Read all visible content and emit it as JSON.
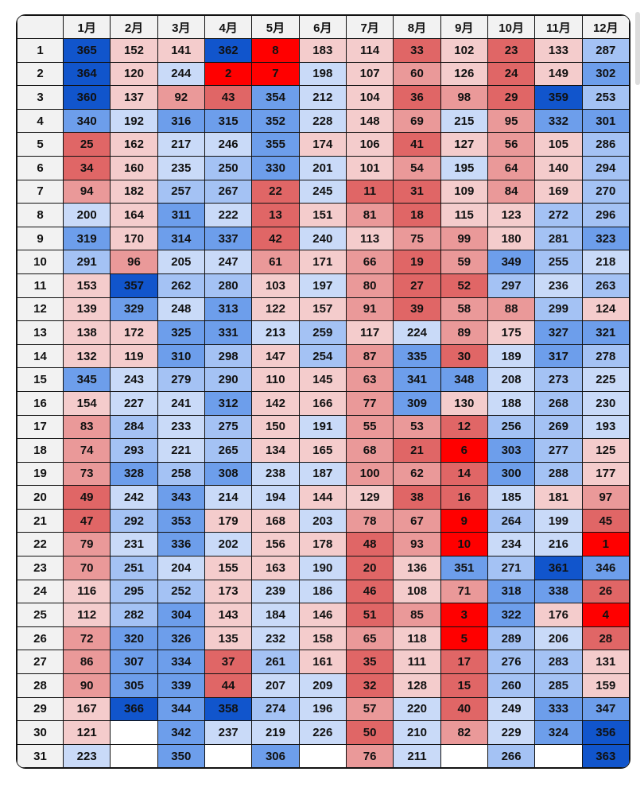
{
  "corner": "",
  "months": [
    "1月",
    "2月",
    "3月",
    "4月",
    "5月",
    "6月",
    "7月",
    "8月",
    "9月",
    "10月",
    "11月",
    "12月"
  ],
  "days": [
    "1",
    "2",
    "3",
    "4",
    "5",
    "6",
    "7",
    "8",
    "9",
    "10",
    "11",
    "12",
    "13",
    "14",
    "15",
    "16",
    "17",
    "18",
    "19",
    "20",
    "21",
    "22",
    "23",
    "24",
    "25",
    "26",
    "27",
    "28",
    "29",
    "30",
    "31"
  ],
  "colors": {
    "r1": "#ff0000",
    "r2": "#e06666",
    "r3": "#ea9999",
    "r4": "#f4cccc",
    "b1": "#c9daf8",
    "b2": "#a4c2f4",
    "b3": "#6d9eeb",
    "b4": "#1155cc",
    "empty": "#ffffff"
  },
  "rows": [
    [
      365,
      152,
      141,
      362,
      8,
      183,
      114,
      33,
      102,
      23,
      133,
      287
    ],
    [
      364,
      120,
      244,
      2,
      7,
      198,
      107,
      60,
      126,
      24,
      149,
      302
    ],
    [
      360,
      137,
      92,
      43,
      354,
      212,
      104,
      36,
      98,
      29,
      359,
      253
    ],
    [
      340,
      192,
      316,
      315,
      352,
      228,
      148,
      69,
      215,
      95,
      332,
      301
    ],
    [
      25,
      162,
      217,
      246,
      355,
      174,
      106,
      41,
      127,
      56,
      105,
      286
    ],
    [
      34,
      160,
      235,
      250,
      330,
      201,
      101,
      54,
      195,
      64,
      140,
      294
    ],
    [
      94,
      182,
      257,
      267,
      22,
      245,
      11,
      31,
      109,
      84,
      169,
      270
    ],
    [
      200,
      164,
      311,
      222,
      13,
      151,
      81,
      18,
      115,
      123,
      272,
      296
    ],
    [
      319,
      170,
      314,
      337,
      42,
      240,
      113,
      75,
      99,
      180,
      281,
      323
    ],
    [
      291,
      96,
      205,
      247,
      61,
      171,
      66,
      19,
      59,
      349,
      255,
      218
    ],
    [
      153,
      357,
      262,
      280,
      103,
      197,
      80,
      27,
      52,
      297,
      236,
      263
    ],
    [
      139,
      329,
      248,
      313,
      122,
      157,
      91,
      39,
      58,
      88,
      299,
      124
    ],
    [
      138,
      172,
      325,
      331,
      213,
      259,
      117,
      224,
      89,
      175,
      327,
      321
    ],
    [
      132,
      119,
      310,
      298,
      147,
      254,
      87,
      335,
      30,
      189,
      317,
      278
    ],
    [
      345,
      243,
      279,
      290,
      110,
      145,
      63,
      341,
      348,
      208,
      273,
      225
    ],
    [
      154,
      227,
      241,
      312,
      142,
      166,
      77,
      309,
      130,
      188,
      268,
      230
    ],
    [
      83,
      284,
      233,
      275,
      150,
      191,
      55,
      53,
      12,
      256,
      269,
      193
    ],
    [
      74,
      293,
      221,
      265,
      134,
      165,
      68,
      21,
      6,
      303,
      277,
      125
    ],
    [
      73,
      328,
      258,
      308,
      238,
      187,
      100,
      62,
      14,
      300,
      288,
      177
    ],
    [
      49,
      242,
      343,
      214,
      194,
      144,
      129,
      38,
      16,
      185,
      181,
      97
    ],
    [
      47,
      292,
      353,
      179,
      168,
      203,
      78,
      67,
      9,
      264,
      199,
      45
    ],
    [
      79,
      231,
      336,
      202,
      156,
      178,
      48,
      93,
      10,
      234,
      216,
      1
    ],
    [
      70,
      251,
      204,
      155,
      163,
      190,
      20,
      136,
      351,
      271,
      361,
      346
    ],
    [
      116,
      295,
      252,
      173,
      239,
      186,
      46,
      108,
      71,
      318,
      338,
      26
    ],
    [
      112,
      282,
      304,
      143,
      184,
      146,
      51,
      85,
      3,
      322,
      176,
      4
    ],
    [
      72,
      320,
      326,
      135,
      232,
      158,
      65,
      118,
      5,
      289,
      206,
      28
    ],
    [
      86,
      307,
      334,
      37,
      261,
      161,
      35,
      111,
      17,
      276,
      283,
      131
    ],
    [
      90,
      305,
      339,
      44,
      207,
      209,
      32,
      128,
      15,
      260,
      285,
      159
    ],
    [
      167,
      366,
      344,
      358,
      274,
      196,
      57,
      220,
      40,
      249,
      333,
      347
    ],
    [
      121,
      null,
      342,
      237,
      219,
      226,
      50,
      210,
      82,
      229,
      324,
      356
    ],
    [
      223,
      null,
      350,
      null,
      306,
      null,
      76,
      211,
      null,
      266,
      null,
      363
    ]
  ]
}
